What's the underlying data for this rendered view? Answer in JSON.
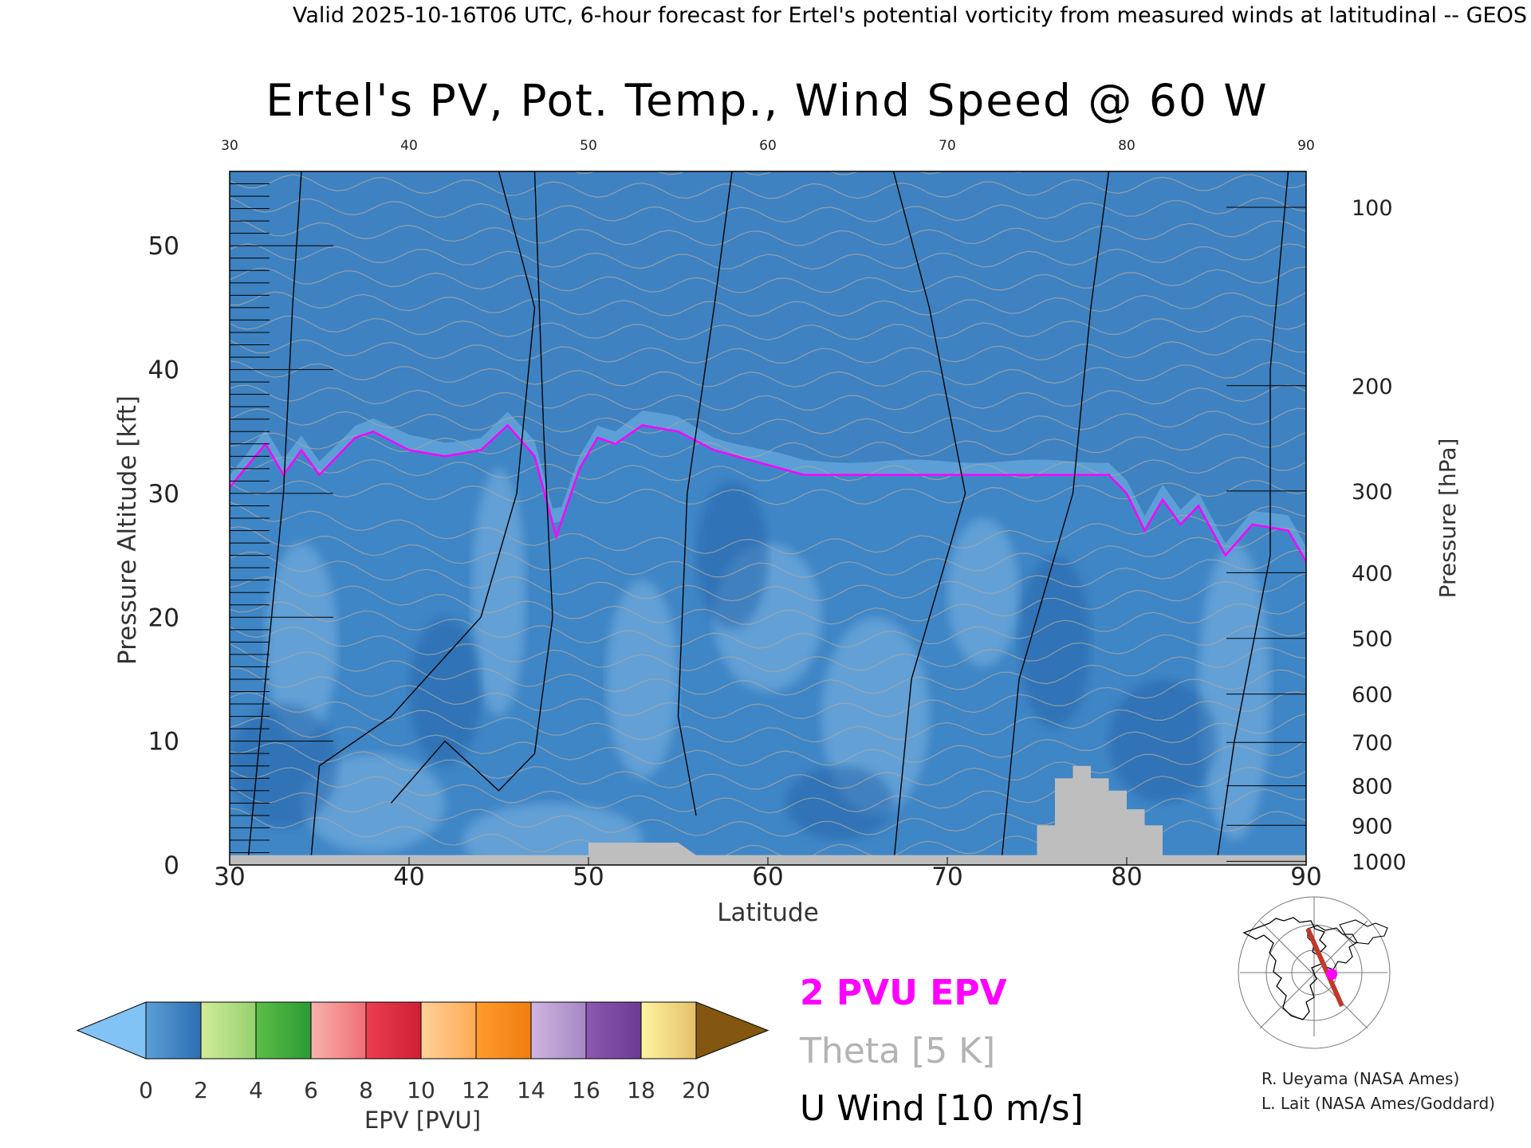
{
  "header": {
    "valid_line": "Valid 2025-10-16T06 UTC, 6-hour forecast for Ertel's potential vorticity from measured winds at latitudinal -- GEOS"
  },
  "chart_data": {
    "type": "heatmap",
    "title": "Ertel's PV, Pot. Temp., Wind Speed @ 60 W",
    "xlabel": "Latitude",
    "ylabel_left": "Pressure Altitude [kft]",
    "ylabel_right": "Pressure [hPa]",
    "xlim": [
      30,
      90
    ],
    "ylim": [
      0,
      56
    ],
    "x_ticks": [
      "30",
      "40",
      "50",
      "60",
      "70",
      "80",
      "90"
    ],
    "x_ticks_top": [
      "30",
      "40",
      "50",
      "60",
      "70",
      "80",
      "90"
    ],
    "y_ticks": [
      "0",
      "10",
      "20",
      "30",
      "40",
      "50"
    ],
    "pressure_ticks": [
      {
        "label": "100",
        "kft": 53.1
      },
      {
        "label": "200",
        "kft": 38.7
      },
      {
        "label": "300",
        "kft": 30.2
      },
      {
        "label": "400",
        "kft": 23.6
      },
      {
        "label": "500",
        "kft": 18.3
      },
      {
        "label": "600",
        "kft": 13.8
      },
      {
        "label": "700",
        "kft": 9.9
      },
      {
        "label": "800",
        "kft": 6.4
      },
      {
        "label": "900",
        "kft": 3.2
      },
      {
        "label": "1000",
        "kft": 0.3
      }
    ],
    "tropopause_2pvu_kft": [
      [
        30,
        30.5
      ],
      [
        32,
        34.0
      ],
      [
        33,
        31.5
      ],
      [
        34,
        33.5
      ],
      [
        35,
        31.5
      ],
      [
        37,
        34.5
      ],
      [
        38,
        35.0
      ],
      [
        40,
        33.5
      ],
      [
        42,
        33.0
      ],
      [
        44,
        33.5
      ],
      [
        45.5,
        35.5
      ],
      [
        47,
        33.0
      ],
      [
        48.2,
        26.5
      ],
      [
        49.5,
        32.0
      ],
      [
        50.5,
        34.5
      ],
      [
        51.5,
        34.0
      ],
      [
        53,
        35.5
      ],
      [
        55,
        35.0
      ],
      [
        57,
        33.5
      ],
      [
        62,
        31.5
      ],
      [
        70,
        31.5
      ],
      [
        75,
        31.5
      ],
      [
        79,
        31.5
      ],
      [
        80,
        30.0
      ],
      [
        81,
        27.0
      ],
      [
        82,
        29.5
      ],
      [
        83,
        27.5
      ],
      [
        84,
        29.0
      ],
      [
        85.5,
        25.0
      ],
      [
        87,
        27.5
      ],
      [
        89,
        27.0
      ],
      [
        90,
        24.5
      ]
    ],
    "orography_kft": [
      [
        30,
        0.8
      ],
      [
        50,
        0.8
      ],
      [
        50,
        1.8
      ],
      [
        55,
        1.8
      ],
      [
        56,
        0.8
      ],
      [
        75,
        0.8
      ],
      [
        75,
        3.2
      ],
      [
        76,
        3.2
      ],
      [
        76,
        7.0
      ],
      [
        77,
        7.0
      ],
      [
        77,
        8.0
      ],
      [
        78,
        8.0
      ],
      [
        78,
        7.0
      ],
      [
        79,
        7.0
      ],
      [
        79,
        6.0
      ],
      [
        80,
        6.0
      ],
      [
        80,
        4.5
      ],
      [
        81,
        4.5
      ],
      [
        81,
        3.2
      ],
      [
        82,
        3.2
      ],
      [
        82,
        0.8
      ],
      [
        90,
        0.8
      ]
    ],
    "colorbar": {
      "label": "EPV [PVU]",
      "ticks": [
        "0",
        "2",
        "4",
        "6",
        "8",
        "10",
        "12",
        "14",
        "16",
        "18",
        "20"
      ],
      "under_color": "#82c3f5",
      "over_color": "#83570f",
      "bins": [
        {
          "range": [
            0,
            2
          ],
          "colors": [
            "#5b9fd6",
            "#2c6fb3"
          ]
        },
        {
          "range": [
            2,
            4
          ],
          "colors": [
            "#d2ec9a",
            "#96d06e"
          ]
        },
        {
          "range": [
            4,
            6
          ],
          "colors": [
            "#5bbd47",
            "#2c9b34"
          ]
        },
        {
          "range": [
            6,
            8
          ],
          "colors": [
            "#f7b2ae",
            "#ef6e74"
          ]
        },
        {
          "range": [
            8,
            10
          ],
          "colors": [
            "#ea3f4f",
            "#cf1f36"
          ]
        },
        {
          "range": [
            10,
            12
          ],
          "colors": [
            "#ffd199",
            "#ffaa55"
          ]
        },
        {
          "range": [
            12,
            14
          ],
          "colors": [
            "#ff9c2b",
            "#ef7d0f"
          ]
        },
        {
          "range": [
            14,
            16
          ],
          "colors": [
            "#cfb5df",
            "#a488c6"
          ]
        },
        {
          "range": [
            16,
            18
          ],
          "colors": [
            "#8d58b0",
            "#6a3b94"
          ]
        },
        {
          "range": [
            18,
            20
          ],
          "colors": [
            "#fff4a0",
            "#e3c068"
          ]
        }
      ]
    },
    "legend": {
      "epv": "2 PVU EPV",
      "theta": "Theta [5 K]",
      "uwind": "U Wind [10 m/s]"
    },
    "colors": {
      "tropopause": "#ff00ff",
      "theta": "#a6a6a6",
      "orography": "#bebebe",
      "wind": "#000000"
    }
  },
  "credits": {
    "line1": "R. Ueyama (NASA Ames)",
    "line2": "L. Lait (NASA Ames/Goddard)"
  }
}
